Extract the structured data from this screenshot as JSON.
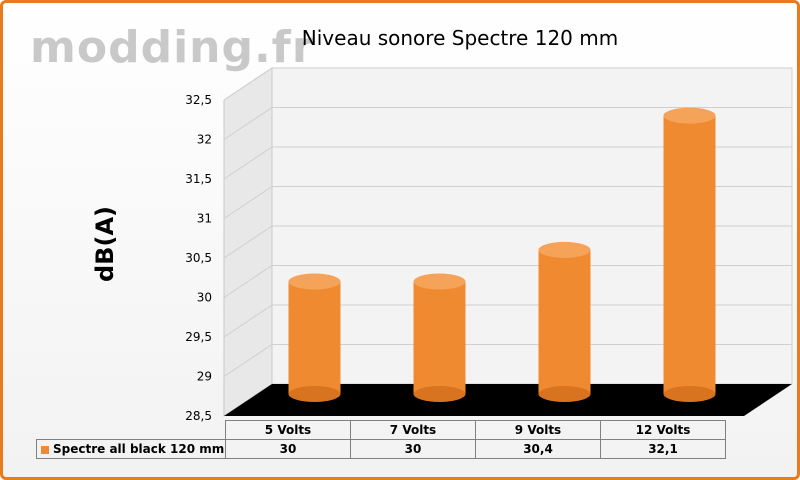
{
  "watermark": "modding.fr",
  "chart_data": {
    "type": "bar",
    "title": "Niveau sonore Spectre 120 mm",
    "ylabel": "dB(A)",
    "xlabel": "",
    "categories": [
      "5 Volts",
      "7 Volts",
      "9 Volts",
      "12 Volts"
    ],
    "series": [
      {
        "name": "Spectre all black 120 mm",
        "values": [
          30,
          30,
          30.4,
          32.1
        ],
        "value_labels": [
          "30",
          "30",
          "30,4",
          "32,1"
        ]
      }
    ],
    "ylim": [
      28.5,
      32.5
    ],
    "yticks": [
      {
        "value": 28.5,
        "label": "28,5"
      },
      {
        "value": 29,
        "label": "29"
      },
      {
        "value": 29.5,
        "label": "29,5"
      },
      {
        "value": 30,
        "label": "30"
      },
      {
        "value": 30.5,
        "label": "30,5"
      },
      {
        "value": 31,
        "label": "31"
      },
      {
        "value": 31.5,
        "label": "31,5"
      },
      {
        "value": 32,
        "label": "32"
      },
      {
        "value": 32.5,
        "label": "32,5"
      }
    ],
    "grid": true,
    "legend": "data-table",
    "colors": {
      "bar": "#f08a30",
      "frame": "#e87b1e",
      "floor": "#000000"
    }
  }
}
